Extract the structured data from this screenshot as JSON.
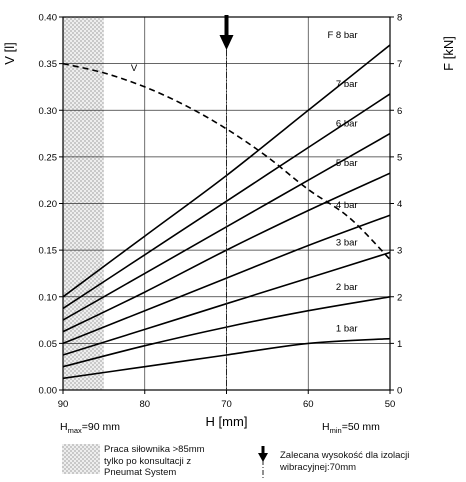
{
  "chart_data": {
    "type": "line",
    "y_left_label": "V [l]",
    "y_right_label": "F [kN]",
    "xlabel": "H [mm]",
    "x_range": [
      90,
      50
    ],
    "x_ticks": [
      "90",
      "80",
      "70",
      "60",
      "50"
    ],
    "y_left_range": [
      0,
      0.4
    ],
    "y_left_ticks": [
      "0.00",
      "0.05",
      "0.10",
      "0.15",
      "0.20",
      "0.25",
      "0.30",
      "0.35",
      "0.40"
    ],
    "y_right_range": [
      0,
      8
    ],
    "y_right_ticks": [
      "0",
      "1",
      "2",
      "3",
      "4",
      "5",
      "6",
      "7",
      "8"
    ],
    "grid": true,
    "volume_series": {
      "name": "V",
      "axis": "left",
      "style": "dashed",
      "x": [
        90,
        85,
        80,
        75,
        70,
        65,
        60,
        55,
        50
      ],
      "values": [
        0.35,
        0.34,
        0.325,
        0.305,
        0.28,
        0.25,
        0.215,
        0.185,
        0.14
      ]
    },
    "force_series": [
      {
        "name": "1 bar",
        "axis": "right",
        "x": [
          90,
          80,
          70,
          60,
          50
        ],
        "values": [
          0.25,
          0.5,
          0.75,
          1.0,
          1.1
        ]
      },
      {
        "name": "2 bar",
        "axis": "right",
        "x": [
          90,
          80,
          70,
          60,
          50
        ],
        "values": [
          0.5,
          0.95,
          1.35,
          1.7,
          2.0
        ]
      },
      {
        "name": "3 bar",
        "axis": "right",
        "x": [
          90,
          80,
          70,
          60,
          50
        ],
        "values": [
          0.75,
          1.3,
          1.85,
          2.4,
          2.95
        ]
      },
      {
        "name": "4 bar",
        "axis": "right",
        "x": [
          90,
          80,
          70,
          60,
          50
        ],
        "values": [
          1.0,
          1.7,
          2.4,
          3.1,
          3.75
        ]
      },
      {
        "name": "5 bar",
        "axis": "right",
        "x": [
          90,
          80,
          70,
          60,
          50
        ],
        "values": [
          1.25,
          2.1,
          3.0,
          3.85,
          4.65
        ]
      },
      {
        "name": "6 bar",
        "axis": "right",
        "x": [
          90,
          80,
          70,
          60,
          50
        ],
        "values": [
          1.5,
          2.5,
          3.5,
          4.5,
          5.5
        ]
      },
      {
        "name": "7 bar",
        "axis": "right",
        "x": [
          90,
          80,
          70,
          60,
          50
        ],
        "values": [
          1.75,
          2.9,
          4.05,
          5.2,
          6.35
        ]
      },
      {
        "name": "F 8 bar",
        "axis": "right",
        "x": [
          90,
          80,
          70,
          60,
          50
        ],
        "values": [
          2.0,
          3.3,
          4.6,
          6.0,
          7.4
        ]
      }
    ],
    "hatched_region": {
      "x_from": 90,
      "x_to": 85
    },
    "marker_line": {
      "x": 70,
      "style": "dash-dot"
    },
    "hmax_label": {
      "prefix": "H",
      "sub": "max",
      "suffix": "=90 mm"
    },
    "hmin_label": {
      "prefix": "H",
      "sub": "min",
      "suffix": "=50 mm"
    },
    "legend": {
      "hatched_text": [
        "Praca siłownika >85mm",
        "tylko po konsultacji z",
        "Pneumat System"
      ],
      "marker_text": [
        "Zalecana wysokość dla izolacji",
        "wibracyjnej:70mm"
      ]
    }
  }
}
